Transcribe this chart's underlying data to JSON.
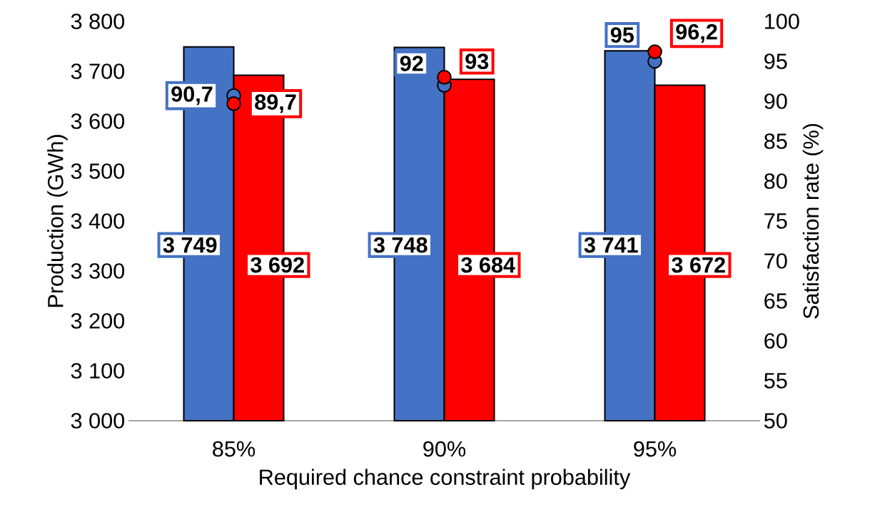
{
  "chart_data": {
    "type": "bar",
    "xlabel": "Required chance constraint probability",
    "ylabel": "Production (GWh)",
    "y2label": "Satisfaction rate (%)",
    "categories": [
      "85%",
      "90%",
      "95%"
    ],
    "ylim": [
      3000,
      3800
    ],
    "yticks": [
      {
        "value": 3000,
        "label": "3 000"
      },
      {
        "value": 3100,
        "label": "3 100"
      },
      {
        "value": 3200,
        "label": "3 200"
      },
      {
        "value": 3300,
        "label": "3 300"
      },
      {
        "value": 3400,
        "label": "3 400"
      },
      {
        "value": 3500,
        "label": "3 500"
      },
      {
        "value": 3600,
        "label": "3 600"
      },
      {
        "value": 3700,
        "label": "3 700"
      },
      {
        "value": 3800,
        "label": "3 800"
      }
    ],
    "y2lim": [
      50,
      100
    ],
    "y2ticks": [
      50,
      55,
      60,
      65,
      70,
      75,
      80,
      85,
      90,
      95,
      100
    ],
    "marker": "circle",
    "series": [
      {
        "color": "#4472c4",
        "values": [
          3749,
          3748,
          3741
        ],
        "value_labels": [
          "3 749",
          "3 748",
          "3 741"
        ]
      },
      {
        "color": "#ff0000",
        "values": [
          3692,
          3684,
          3672
        ],
        "value_labels": [
          "3 692",
          "3 684",
          "3 672"
        ]
      },
      {
        "type": "scatter",
        "axis": "y2",
        "color": "#4472c4",
        "x": [
          "85%",
          "90%",
          "95%"
        ],
        "values": [
          90.7,
          92,
          95
        ],
        "value_labels": [
          "90,7",
          "92",
          "95"
        ]
      },
      {
        "type": "scatter",
        "axis": "y2",
        "color": "#ff0000",
        "x": [
          "85%",
          "90%",
          "95%"
        ],
        "values": [
          89.7,
          93,
          96.2
        ],
        "value_labels": [
          "89,7",
          "93",
          "96,2"
        ]
      }
    ]
  }
}
